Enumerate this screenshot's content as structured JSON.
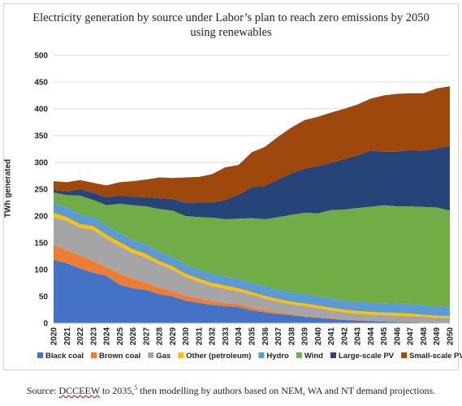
{
  "chart_data": {
    "type": "area",
    "stacked": true,
    "title": "Electricity generation by source under Labor’s plan to reach zero emissions by 2050",
    "title_line1": "Electricity generation by source under Labor’s plan to reach zero emissions by 2050",
    "title_line2": "using renewables",
    "ylabel": "TWh generated",
    "xlabel": "",
    "ylim": [
      0,
      500
    ],
    "yticks": [
      "0",
      "50",
      "100",
      "150",
      "200",
      "250",
      "300",
      "350",
      "400",
      "450",
      "500"
    ],
    "grid": true,
    "legend_position": "bottom",
    "x": [
      "2020",
      "2021",
      "2022",
      "2023",
      "2024",
      "2025",
      "2026",
      "2027",
      "2028",
      "2029",
      "2030",
      "2031",
      "2032",
      "2033",
      "2034",
      "2035",
      "2036",
      "2037",
      "2038",
      "2039",
      "2040",
      "2041",
      "2042",
      "2043",
      "2044",
      "2045",
      "2046",
      "2047",
      "2048",
      "2049",
      "2050"
    ],
    "series": [
      {
        "name": "Black coal",
        "color": "#4472c4",
        "values": [
          118,
          112,
          102,
          94,
          88,
          72,
          65,
          62,
          54,
          50,
          42,
          38,
          34,
          32,
          30,
          24,
          20,
          17,
          15,
          12,
          10,
          8,
          6,
          5,
          4,
          3,
          2,
          2,
          1,
          0,
          0
        ]
      },
      {
        "name": "Brown coal",
        "color": "#ed7d31",
        "values": [
          28,
          24,
          24,
          22,
          16,
          20,
          18,
          14,
          12,
          10,
          9,
          8,
          7,
          6,
          5,
          5,
          4,
          3,
          2,
          1,
          1,
          1,
          1,
          1,
          0,
          0,
          0,
          0,
          0,
          0,
          0
        ]
      },
      {
        "name": "Gas",
        "color": "#a5a5a5",
        "values": [
          52,
          55,
          52,
          58,
          54,
          52,
          48,
          46,
          44,
          40,
          35,
          31,
          28,
          26,
          24,
          24,
          22,
          20,
          18,
          19,
          17,
          15,
          13,
          12,
          12,
          12,
          12,
          11,
          11,
          10,
          9
        ]
      },
      {
        "name": "Other (petroleum)",
        "color": "#ffc000",
        "values": [
          8,
          7,
          7,
          7,
          7,
          7,
          7,
          7,
          6,
          6,
          6,
          6,
          6,
          6,
          6,
          5,
          5,
          5,
          5,
          5,
          5,
          5,
          5,
          5,
          5,
          5,
          5,
          5,
          4,
          4,
          4
        ]
      },
      {
        "name": "Hydro",
        "color": "#5b9bd5",
        "values": [
          18,
          18,
          17,
          17,
          17,
          17,
          17,
          17,
          17,
          17,
          17,
          17,
          17,
          17,
          17,
          17,
          17,
          17,
          17,
          17,
          17,
          17,
          17,
          17,
          17,
          17,
          17,
          17,
          17,
          17,
          17
        ]
      },
      {
        "name": "Wind",
        "color": "#70ad47",
        "values": [
          20,
          23,
          36,
          32,
          38,
          55,
          65,
          72,
          80,
          87,
          91,
          98,
          105,
          107,
          113,
          121,
          126,
          136,
          145,
          152,
          155,
          165,
          170,
          175,
          179,
          183,
          182,
          183,
          184,
          185,
          180
        ]
      },
      {
        "name": "Large-scale PV",
        "color": "#264478",
        "values": [
          4,
          7,
          12,
          13,
          15,
          15,
          16,
          17,
          20,
          22,
          24,
          27,
          28,
          36,
          45,
          58,
          62,
          70,
          78,
          82,
          88,
          88,
          94,
          98,
          105,
          100,
          102,
          105,
          105,
          110,
          121
        ]
      },
      {
        "name": "Small-scale PV",
        "color": "#9e480e",
        "values": [
          17,
          17,
          17,
          19,
          22,
          25,
          29,
          33,
          39,
          39,
          48,
          48,
          53,
          61,
          55,
          65,
          73,
          80,
          85,
          91,
          92,
          94,
          94,
          95,
          97,
          105,
          108,
          106,
          107,
          112,
          111
        ]
      }
    ]
  },
  "source": {
    "prefix": "Source: ",
    "org": "DCCEEW",
    "middle": " to 2035,",
    "sup": "5",
    "suffix": " then modelling by authors based on NEM, WA and NT demand projections."
  }
}
